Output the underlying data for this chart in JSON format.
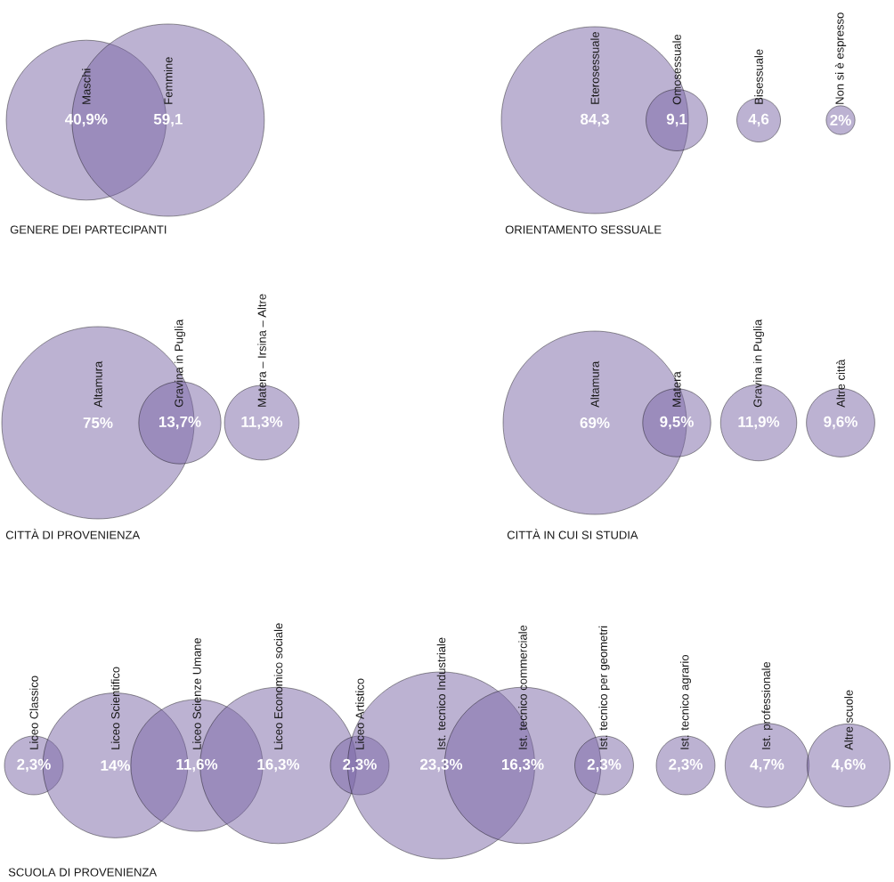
{
  "chart_data": [
    {
      "type": "other",
      "title": "GENERE DEI PARTECIPANTI",
      "categories": [
        "Maschi",
        "Femmine"
      ],
      "values": [
        40.9,
        59.1
      ],
      "value_labels": [
        "40,9%",
        "59,1"
      ],
      "color": "#7a66a5"
    },
    {
      "type": "other",
      "title": "ORIENTAMENTO SESSUALE",
      "categories": [
        "Eterosessuale",
        "Omosessuale",
        "Bisessuale",
        "Non si è espresso"
      ],
      "values": [
        84.3,
        9.1,
        4.6,
        2
      ],
      "value_labels": [
        "84,3",
        "9,1",
        "4,6",
        "2%"
      ],
      "color": "#7a66a5"
    },
    {
      "type": "other",
      "title": "CITTÀ DI PROVENIENZA",
      "categories": [
        "Altamura",
        "Gravina in Puglia",
        "Matera – Irsina – Altre"
      ],
      "values": [
        75,
        13.7,
        11.3
      ],
      "value_labels": [
        "75%",
        "13,7%",
        "11,3%"
      ],
      "color": "#7a66a5"
    },
    {
      "type": "other",
      "title": "CITTÀ IN CUI SI STUDIA",
      "categories": [
        "Altamura",
        "Matera",
        "Gravina in Puglia",
        "Altre città"
      ],
      "values": [
        69,
        9.5,
        11.9,
        9.6
      ],
      "value_labels": [
        "69%",
        "9,5%",
        "11,9%",
        "9,6%"
      ],
      "color": "#7a66a5"
    },
    {
      "type": "other",
      "title": "SCUOLA DI PROVENIENZA",
      "categories": [
        "Liceo Classico",
        "Liceo Scientifico",
        "Liceo Scienze Umane",
        "Liceo Economico sociale",
        "Liceo Artistico",
        "Ist. tecnico Industriale",
        "Ist. tecnico commerciale",
        "Ist. tecnico per geometri",
        "Ist. tecnico agrario",
        "Ist. professionale",
        "Altre scuole"
      ],
      "values": [
        2.3,
        14,
        11.6,
        16.3,
        2.3,
        23.3,
        16.3,
        2.3,
        2.3,
        4.7,
        4.6
      ],
      "value_labels": [
        "2,3%",
        "14%",
        "11,6%",
        "16,3%",
        "2,3%",
        "23,3%",
        "16,3%",
        "2,3%",
        "2,3%",
        "4,7%",
        "4,6%"
      ],
      "color": "#7a66a5"
    }
  ]
}
